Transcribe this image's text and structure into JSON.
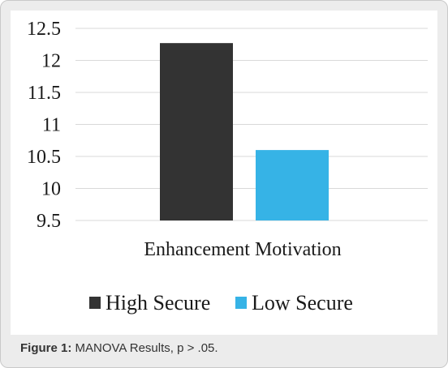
{
  "chart_data": {
    "type": "bar",
    "categories": [
      "Enhancement Motivation"
    ],
    "series": [
      {
        "name": "High Secure",
        "values": [
          12.27
        ],
        "color": "#333333"
      },
      {
        "name": "Low Secure",
        "values": [
          10.6
        ],
        "color": "#36b3e6"
      }
    ],
    "ylim": [
      9.5,
      12.5
    ],
    "yticks": [
      "12.5",
      "12",
      "11.5",
      "11",
      "10.5",
      "10",
      "9.5"
    ],
    "ytick_values": [
      12.5,
      12,
      11.5,
      11,
      10.5,
      10,
      9.5
    ],
    "grid": true,
    "legend_position": "bottom"
  },
  "caption": {
    "label": "Figure 1:",
    "text": "MANOVA Results, p > .05."
  }
}
